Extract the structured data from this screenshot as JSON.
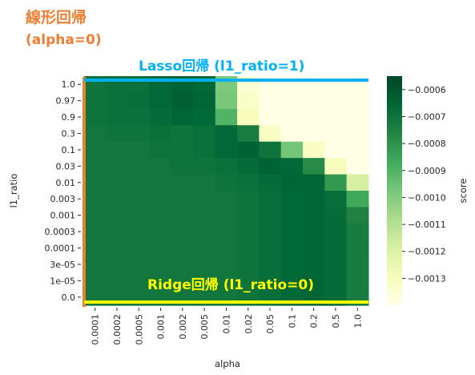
{
  "chart_data": {
    "type": "heatmap",
    "xlabel": "alpha",
    "ylabel": "l1_ratio",
    "x_categories": [
      "0.0001",
      "0.0002",
      "0.0005",
      "0.001",
      "0.002",
      "0.005",
      "0.01",
      "0.02",
      "0.05",
      "0.1",
      "0.2",
      "0.5",
      "1.0"
    ],
    "y_categories": [
      "1.0",
      "0.97",
      "0.9",
      "0.3",
      "0.1",
      "0.03",
      "0.01",
      "0.003",
      "0.001",
      "0.0003",
      "0.0001",
      "3e-05",
      "1e-05",
      "0.0"
    ],
    "values": [
      [
        -0.0007,
        -0.00069,
        -0.00069,
        -0.00066,
        -0.00064,
        -0.00066,
        -0.00099,
        -0.00136,
        -0.0014,
        -0.0014,
        -0.0014,
        -0.0014,
        -0.0014
      ],
      [
        -0.0007,
        -0.00069,
        -0.00068,
        -0.00066,
        -0.00063,
        -0.00065,
        -0.00098,
        -0.00133,
        -0.0014,
        -0.0014,
        -0.0014,
        -0.0014,
        -0.0014
      ],
      [
        -0.0007,
        -0.00069,
        -0.00069,
        -0.00067,
        -0.00065,
        -0.00066,
        -0.0009,
        -0.0013,
        -0.0014,
        -0.0014,
        -0.0014,
        -0.0014,
        -0.0014
      ],
      [
        -0.00071,
        -0.0007,
        -0.0007,
        -0.00069,
        -0.0007,
        -0.00069,
        -0.00066,
        -0.00073,
        -0.00132,
        -0.0014,
        -0.0014,
        -0.0014,
        -0.0014
      ],
      [
        -0.00071,
        -0.00071,
        -0.00071,
        -0.0007,
        -0.0007,
        -0.00069,
        -0.00066,
        -0.00064,
        -0.0007,
        -0.00097,
        -0.00132,
        -0.0014,
        -0.0014
      ],
      [
        -0.00071,
        -0.00071,
        -0.00071,
        -0.00071,
        -0.0007,
        -0.0007,
        -0.00069,
        -0.00067,
        -0.00064,
        -0.00066,
        -0.00078,
        -0.0013,
        -0.0014
      ],
      [
        -0.00071,
        -0.00071,
        -0.00071,
        -0.00071,
        -0.00071,
        -0.00071,
        -0.0007,
        -0.00069,
        -0.00067,
        -0.00065,
        -0.00065,
        -0.00082,
        -0.00118
      ],
      [
        -0.00071,
        -0.00071,
        -0.00071,
        -0.00071,
        -0.00071,
        -0.00071,
        -0.00071,
        -0.0007,
        -0.00068,
        -0.00066,
        -0.00065,
        -0.00068,
        -0.00086
      ],
      [
        -0.00071,
        -0.00071,
        -0.00071,
        -0.00071,
        -0.00071,
        -0.00071,
        -0.00071,
        -0.0007,
        -0.00068,
        -0.00066,
        -0.00065,
        -0.00067,
        -0.00075
      ],
      [
        -0.00071,
        -0.00071,
        -0.00071,
        -0.00071,
        -0.00071,
        -0.00071,
        -0.00071,
        -0.0007,
        -0.00068,
        -0.00066,
        -0.00065,
        -0.00067,
        -0.00073
      ],
      [
        -0.00071,
        -0.00071,
        -0.00071,
        -0.00071,
        -0.00071,
        -0.00071,
        -0.00071,
        -0.0007,
        -0.00068,
        -0.00066,
        -0.00065,
        -0.00067,
        -0.00073
      ],
      [
        -0.00071,
        -0.00071,
        -0.00071,
        -0.00071,
        -0.00071,
        -0.00071,
        -0.00071,
        -0.0007,
        -0.00068,
        -0.00066,
        -0.00065,
        -0.00067,
        -0.00073
      ],
      [
        -0.00071,
        -0.00071,
        -0.00071,
        -0.00071,
        -0.00071,
        -0.00071,
        -0.00071,
        -0.0007,
        -0.00068,
        -0.00066,
        -0.00065,
        -0.00067,
        -0.00073
      ],
      [
        -0.00071,
        -0.00071,
        -0.00071,
        -0.00071,
        -0.00071,
        -0.00071,
        -0.00071,
        -0.0007,
        -0.00068,
        -0.00066,
        -0.00065,
        -0.00067,
        -0.00073
      ]
    ],
    "colorbar": {
      "label": "score",
      "colormap": "YlGn",
      "vmin": -0.0014,
      "vmax": -0.00055,
      "ticks": [
        -0.0006,
        -0.0007,
        -0.0008,
        -0.0009,
        -0.001,
        -0.0011,
        -0.0012,
        -0.0013
      ],
      "tick_labels": [
        "−0.0006",
        "−0.0007",
        "−0.0008",
        "−0.0009",
        "−0.0010",
        "−0.0011",
        "−0.0012",
        "−0.0013"
      ]
    },
    "annotations": {
      "linear": {
        "line1": "線形回帰",
        "line2": "(alpha=0)",
        "color": "#ed7d31"
      },
      "lasso": {
        "text": "Lasso回帰 (l1_ratio=1)",
        "color": "#00b0f0"
      },
      "ridge": {
        "text": "Ridge回帰 (l1_ratio=0)",
        "color": "#ffff00"
      }
    },
    "grid": false
  }
}
